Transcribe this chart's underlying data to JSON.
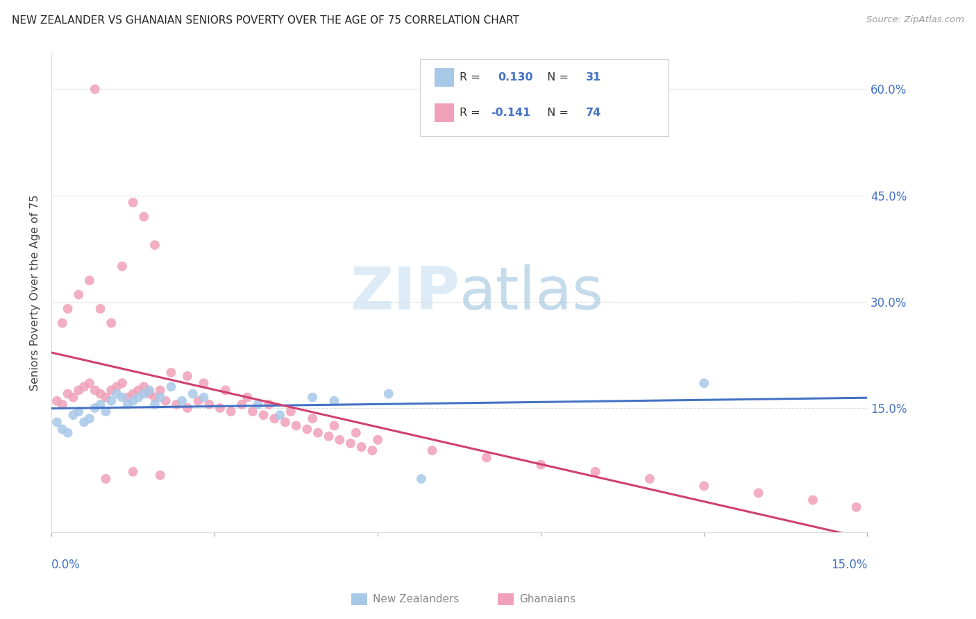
{
  "title": "NEW ZEALANDER VS GHANAIAN SENIORS POVERTY OVER THE AGE OF 75 CORRELATION CHART",
  "source": "Source: ZipAtlas.com",
  "ylabel": "Seniors Poverty Over the Age of 75",
  "xmin": 0.0,
  "xmax": 0.15,
  "ymin": -0.025,
  "ymax": 0.65,
  "nz_R": 0.13,
  "nz_N": 31,
  "gh_R": -0.141,
  "gh_N": 74,
  "nz_color": "#a8c8e8",
  "gh_color": "#f0a0b8",
  "nz_line_color": "#4472c4",
  "gh_line_color": "#d04070",
  "ytick_vals": [
    0.15,
    0.3,
    0.45,
    0.6
  ],
  "xtick_vals": [
    0.0,
    0.03,
    0.06,
    0.09,
    0.12,
    0.15
  ],
  "nz_x": [
    0.001,
    0.002,
    0.003,
    0.004,
    0.005,
    0.006,
    0.007,
    0.008,
    0.009,
    0.01,
    0.011,
    0.012,
    0.013,
    0.014,
    0.015,
    0.016,
    0.017,
    0.018,
    0.019,
    0.02,
    0.022,
    0.024,
    0.026,
    0.028,
    0.038,
    0.042,
    0.048,
    0.052,
    0.062,
    0.068,
    0.12
  ],
  "nz_y": [
    0.13,
    0.12,
    0.115,
    0.14,
    0.145,
    0.13,
    0.135,
    0.15,
    0.155,
    0.145,
    0.16,
    0.17,
    0.165,
    0.155,
    0.16,
    0.165,
    0.17,
    0.175,
    0.155,
    0.165,
    0.18,
    0.16,
    0.17,
    0.165,
    0.155,
    0.14,
    0.165,
    0.16,
    0.17,
    0.05,
    0.185
  ],
  "gh_x": [
    0.001,
    0.002,
    0.003,
    0.004,
    0.005,
    0.006,
    0.007,
    0.008,
    0.009,
    0.01,
    0.011,
    0.012,
    0.013,
    0.014,
    0.015,
    0.016,
    0.017,
    0.018,
    0.019,
    0.02,
    0.002,
    0.003,
    0.005,
    0.007,
    0.009,
    0.011,
    0.013,
    0.015,
    0.017,
    0.019,
    0.021,
    0.023,
    0.025,
    0.027,
    0.029,
    0.031,
    0.033,
    0.035,
    0.037,
    0.039,
    0.041,
    0.043,
    0.045,
    0.047,
    0.049,
    0.051,
    0.053,
    0.055,
    0.057,
    0.059,
    0.022,
    0.025,
    0.028,
    0.032,
    0.036,
    0.04,
    0.044,
    0.048,
    0.052,
    0.056,
    0.06,
    0.07,
    0.08,
    0.09,
    0.1,
    0.11,
    0.12,
    0.13,
    0.14,
    0.148,
    0.008,
    0.01,
    0.015,
    0.02
  ],
  "gh_y": [
    0.16,
    0.155,
    0.17,
    0.165,
    0.175,
    0.18,
    0.185,
    0.175,
    0.17,
    0.165,
    0.175,
    0.18,
    0.185,
    0.165,
    0.17,
    0.175,
    0.18,
    0.17,
    0.165,
    0.175,
    0.27,
    0.29,
    0.31,
    0.33,
    0.29,
    0.27,
    0.35,
    0.44,
    0.42,
    0.38,
    0.16,
    0.155,
    0.15,
    0.16,
    0.155,
    0.15,
    0.145,
    0.155,
    0.145,
    0.14,
    0.135,
    0.13,
    0.125,
    0.12,
    0.115,
    0.11,
    0.105,
    0.1,
    0.095,
    0.09,
    0.2,
    0.195,
    0.185,
    0.175,
    0.165,
    0.155,
    0.145,
    0.135,
    0.125,
    0.115,
    0.105,
    0.09,
    0.08,
    0.07,
    0.06,
    0.05,
    0.04,
    0.03,
    0.02,
    0.01,
    0.6,
    0.05,
    0.06,
    0.055
  ]
}
